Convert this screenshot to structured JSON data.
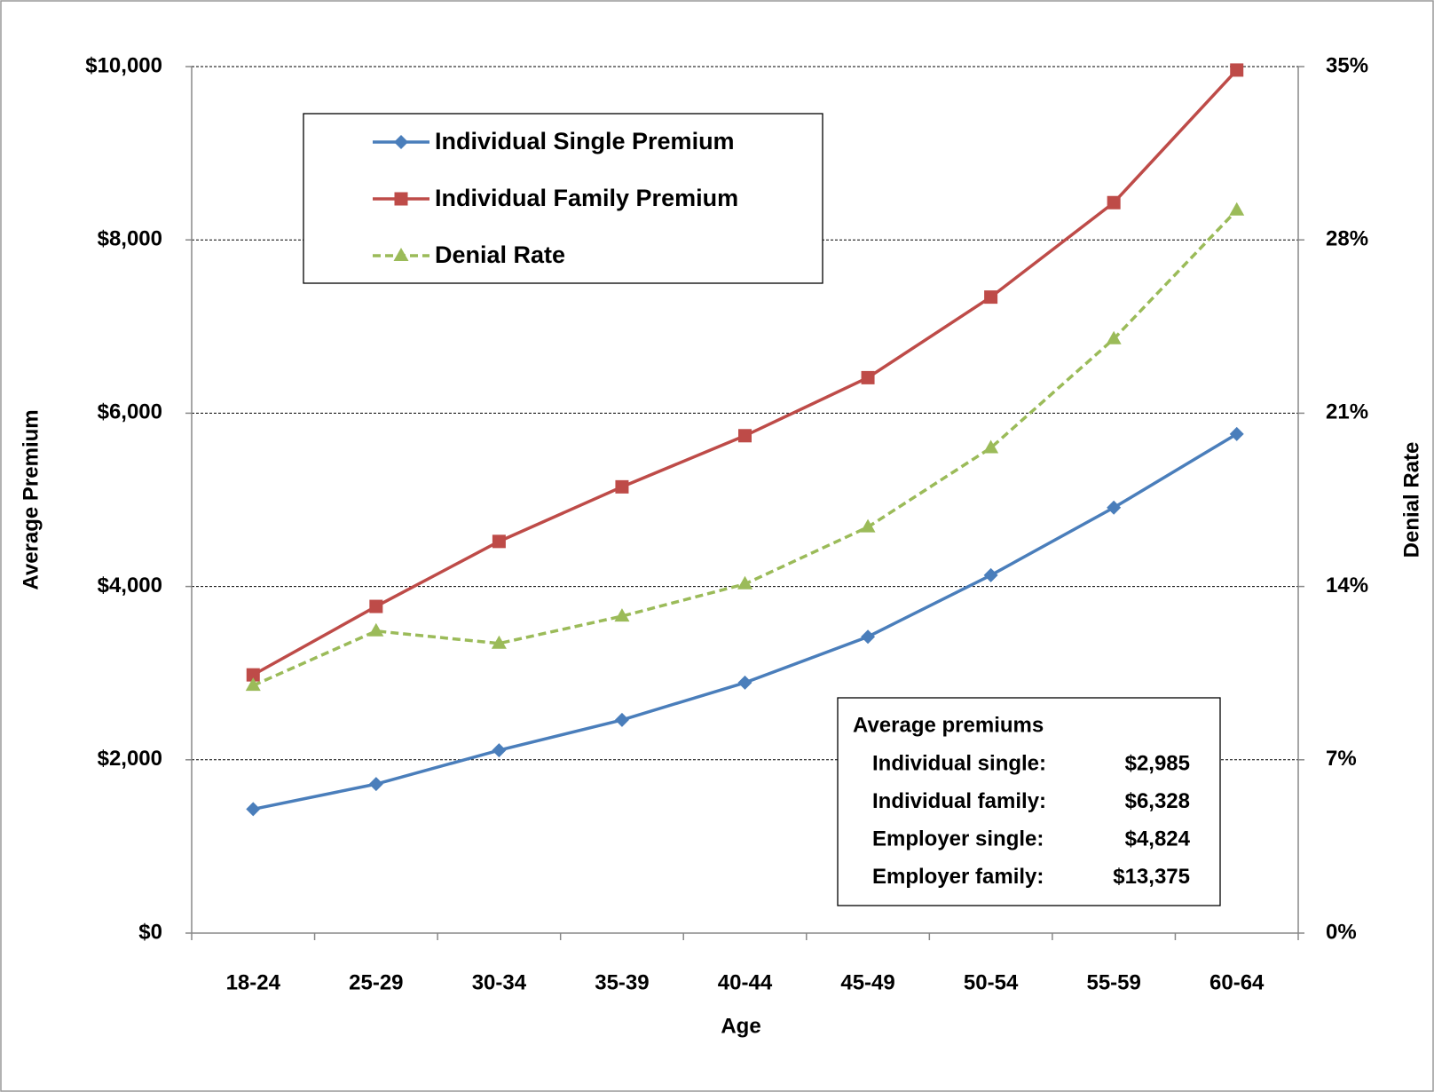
{
  "chart_data": {
    "type": "line",
    "x_label": "Age",
    "y_label": "Average Premium",
    "y2_label": "Denial Rate",
    "categories": [
      "18-24",
      "25-29",
      "30-34",
      "35-39",
      "40-44",
      "45-49",
      "50-54",
      "55-59",
      "60-64"
    ],
    "series": [
      {
        "name": "Individual Single Premium",
        "color": "#4a7ebb",
        "marker": "diamond",
        "dash": false,
        "values": [
          1430,
          1720,
          2110,
          2460,
          2890,
          3420,
          4130,
          4910,
          5760
        ]
      },
      {
        "name": "Individual Family Premium",
        "color": "#be4b48",
        "marker": "square",
        "dash": false,
        "values": [
          2980,
          3770,
          4520,
          5150,
          5740,
          6410,
          7340,
          8430,
          9960
        ]
      },
      {
        "name": "Denial Rate",
        "color": "#9bbb59",
        "marker": "triangle",
        "dash": true,
        "axis": "y2",
        "values": [
          10.0,
          12.2,
          11.7,
          12.8,
          14.1,
          16.4,
          19.6,
          24.0,
          29.2
        ]
      }
    ],
    "ylim": [
      0,
      10000
    ],
    "yticks": [
      {
        "value": 0,
        "label": "$0"
      },
      {
        "value": 2000,
        "label": "$2,000"
      },
      {
        "value": 4000,
        "label": "$4,000"
      },
      {
        "value": 6000,
        "label": "$6,000"
      },
      {
        "value": 8000,
        "label": "$8,000"
      },
      {
        "value": 10000,
        "label": "$10,000"
      }
    ],
    "y2lim": [
      0,
      35
    ],
    "y2ticks": [
      {
        "value": 0,
        "label": "0%"
      },
      {
        "value": 7,
        "label": "7%"
      },
      {
        "value": 14,
        "label": "14%"
      },
      {
        "value": 21,
        "label": "21%"
      },
      {
        "value": 28,
        "label": "28%"
      },
      {
        "value": 35,
        "label": "35%"
      }
    ],
    "grid": true,
    "legend": "upper left",
    "annotation": {
      "title": "Average premiums",
      "rows": [
        {
          "label": "Individual single:",
          "value": "$2,985"
        },
        {
          "label": "Individual family:",
          "value": "$6,328"
        },
        {
          "label": "Employer single:",
          "value": "$4,824"
        },
        {
          "label": "Employer family:",
          "value": "$13,375"
        }
      ]
    }
  }
}
